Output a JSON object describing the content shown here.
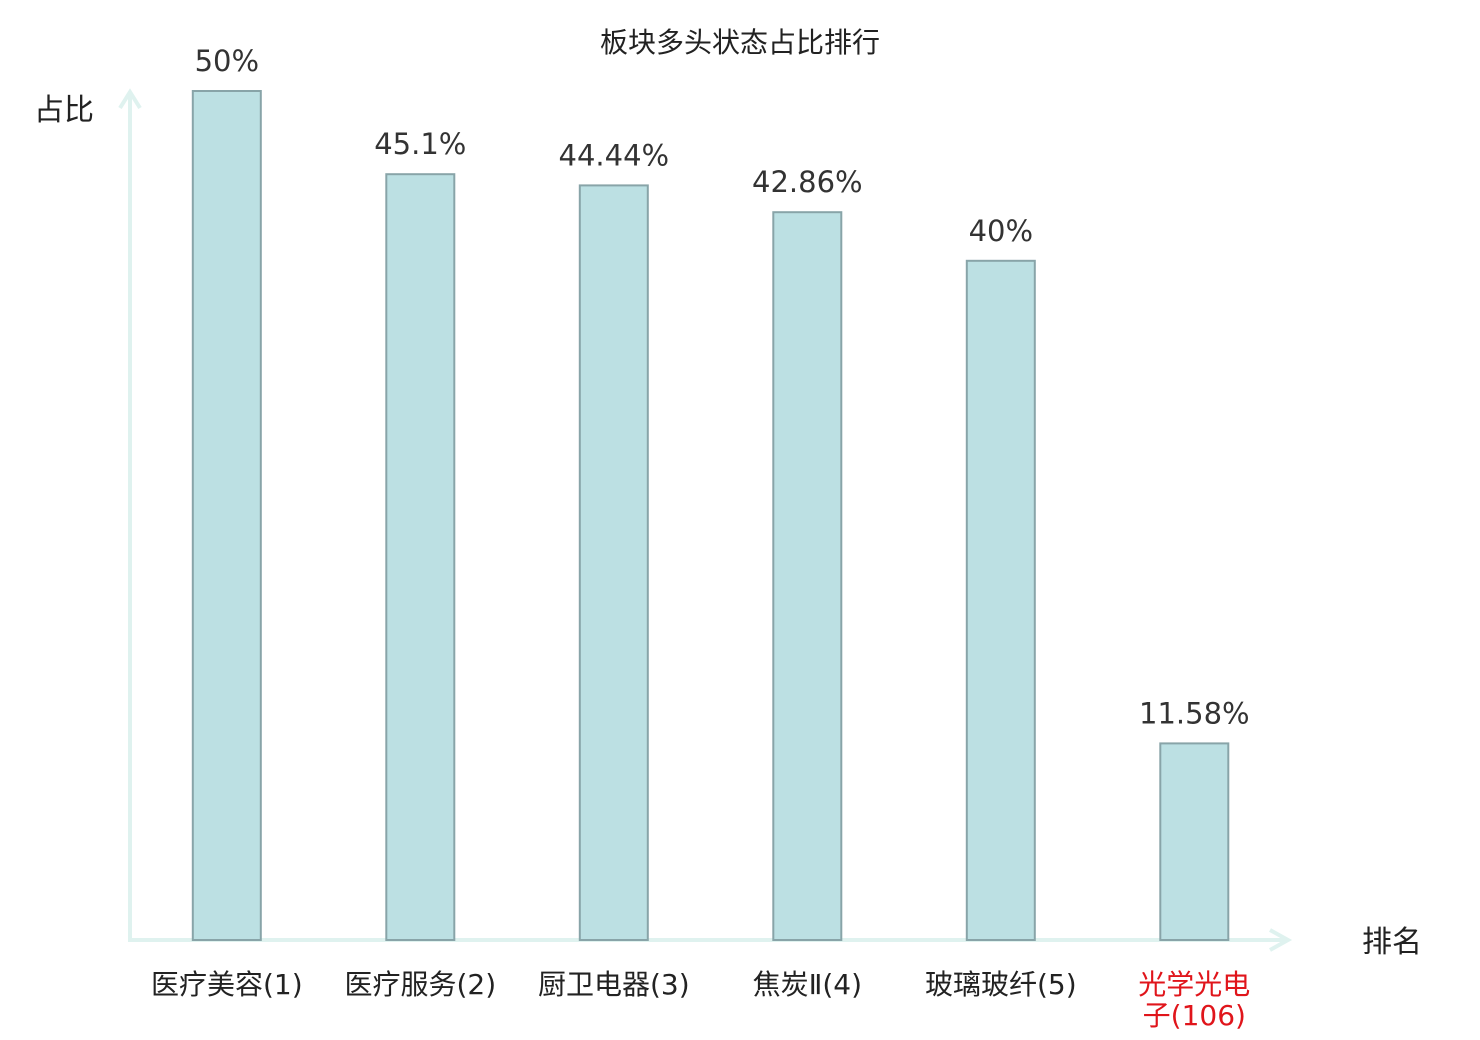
{
  "chart_data": {
    "type": "bar",
    "title": "板块多头状态占比排行",
    "xlabel": "排名",
    "ylabel": "占比",
    "categories": [
      {
        "line1": "医疗美容(1)",
        "line2": ""
      },
      {
        "line1": "医疗服务(2)",
        "line2": ""
      },
      {
        "line1": "厨卫电器(3)",
        "line2": ""
      },
      {
        "line1": "焦炭Ⅱ(4)",
        "line2": ""
      },
      {
        "line1": "玻璃玻纤(5)",
        "line2": ""
      },
      {
        "line1": "光学光电",
        "line2": "子(106)"
      }
    ],
    "values": [
      50,
      45.1,
      44.44,
      42.86,
      40,
      11.58
    ],
    "value_labels": [
      "50%",
      "45.1%",
      "44.44%",
      "42.86%",
      "40%",
      "11.58%"
    ],
    "ylim": [
      0,
      50
    ],
    "highlight_index": 5,
    "grid": false,
    "colors": {
      "bar_fill": "#bce0e3",
      "bar_stroke": "#88a4a8",
      "axis": "#dff2ef",
      "label": "#222222",
      "highlight_label": "#e0151b"
    }
  }
}
